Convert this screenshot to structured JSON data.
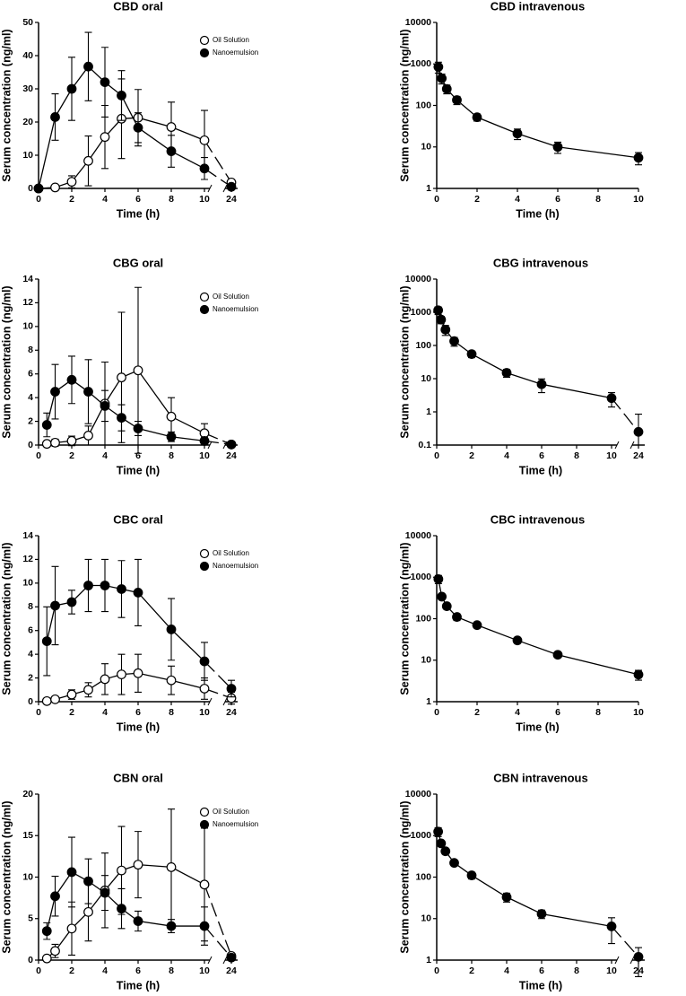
{
  "chart_data": [
    {
      "type": "line",
      "title": "CBD oral",
      "x_label": "Time (h)",
      "y_label": "Serum concentration (ng/ml)",
      "x": [
        0,
        1,
        2,
        3,
        4,
        5,
        6,
        8,
        10,
        24
      ],
      "xlim": [
        0,
        24
      ],
      "xticks": [
        0,
        2,
        4,
        6,
        8,
        10,
        24
      ],
      "x_axis_break": true,
      "ylim": [
        0,
        50
      ],
      "yticks": [
        0,
        10,
        20,
        30,
        40,
        50
      ],
      "yscale": "linear",
      "legend": "upper right",
      "series": [
        {
          "name": "Oil Solution",
          "color": "#000000",
          "marker_fill": "#ffffff",
          "values": [
            0,
            0.3,
            2,
            8.3,
            15.5,
            21,
            21.3,
            18.5,
            14.5,
            1.8
          ],
          "errors": [
            null,
            0.3,
            1.8,
            7.5,
            9.5,
            12,
            8.5,
            7.5,
            9,
            0.5
          ]
        },
        {
          "name": "Nanoemulsion",
          "color": "#000000",
          "marker_fill": "#000000",
          "values": [
            0,
            21.5,
            30,
            36.7,
            32,
            28,
            18.3,
            11.2,
            6,
            0.5
          ],
          "errors": [
            null,
            7,
            9.5,
            10.3,
            10.5,
            7.5,
            4.5,
            4.8,
            3.3,
            0.3
          ]
        }
      ]
    },
    {
      "type": "line",
      "title": "CBD intravenous",
      "x_label": "Time (h)",
      "y_label": "Serum concentration (ng/ml)",
      "x": [
        0.083,
        0.25,
        0.5,
        1,
        2,
        4,
        6,
        10
      ],
      "xlim": [
        0,
        10
      ],
      "xticks": [
        0,
        2,
        4,
        6,
        8,
        10
      ],
      "x_axis_break": false,
      "ylim": [
        1,
        10000
      ],
      "yticks": [
        1,
        10,
        100,
        1000,
        10000
      ],
      "yscale": "log",
      "series": [
        {
          "color": "#000000",
          "marker_fill": "#000000",
          "values": [
            850,
            450,
            250,
            135,
            52,
            21,
            10,
            5.5
          ],
          "errors": [
            250,
            120,
            60,
            30,
            10,
            6,
            3,
            1.8
          ]
        }
      ]
    },
    {
      "type": "line",
      "title": "CBG oral",
      "x_label": "Time (h)",
      "y_label": "Serum concentration (ng/ml)",
      "x": [
        0.5,
        1,
        2,
        3,
        4,
        5,
        6,
        8,
        10,
        24
      ],
      "xlim": [
        0,
        24
      ],
      "xticks": [
        0,
        2,
        4,
        6,
        8,
        10,
        24
      ],
      "x_axis_break": true,
      "ylim": [
        0,
        14
      ],
      "yticks": [
        0,
        2,
        4,
        6,
        8,
        10,
        12,
        14
      ],
      "yscale": "linear",
      "legend": "upper right",
      "series": [
        {
          "name": "Oil Solution",
          "color": "#000000",
          "marker_fill": "#ffffff",
          "values": [
            0.1,
            0.2,
            0.35,
            0.8,
            3.5,
            5.7,
            6.3,
            2.4,
            1,
            0.05
          ],
          "errors": [
            0.1,
            0.3,
            0.4,
            0.8,
            3.5,
            5.5,
            7,
            1.6,
            0.8,
            0.1
          ]
        },
        {
          "name": "Nanoemulsion",
          "color": "#000000",
          "marker_fill": "#000000",
          "values": [
            1.7,
            4.5,
            5.5,
            4.5,
            3.3,
            2.3,
            1.4,
            0.7,
            0.35,
            0.05
          ],
          "errors": [
            1,
            2.3,
            2,
            2.7,
            1.3,
            1.1,
            0.6,
            0.4,
            0.3,
            0.1
          ]
        }
      ]
    },
    {
      "type": "line",
      "title": "CBG intravenous",
      "x_label": "Time (h)",
      "y_label": "Serum concentration (ng/ml)",
      "x": [
        0.083,
        0.25,
        0.5,
        1,
        2,
        4,
        6,
        10,
        24
      ],
      "xlim": [
        0,
        24
      ],
      "xticks": [
        0,
        2,
        4,
        6,
        8,
        10,
        24
      ],
      "x_axis_break": true,
      "ylim": [
        0.1,
        10000
      ],
      "yticks": [
        0.1,
        1,
        10,
        100,
        1000,
        10000
      ],
      "yscale": "log",
      "series": [
        {
          "color": "#000000",
          "marker_fill": "#000000",
          "values": [
            1150,
            600,
            300,
            135,
            55,
            15,
            6.8,
            2.6,
            0.25
          ],
          "errors": [
            300,
            150,
            100,
            40,
            12,
            4,
            3,
            1.2,
            0.6
          ]
        }
      ]
    },
    {
      "type": "line",
      "title": "CBC oral",
      "x_label": "Time (h)",
      "y_label": "Serum concentration (ng/ml)",
      "x": [
        0.5,
        1,
        2,
        3,
        4,
        5,
        6,
        8,
        10,
        24
      ],
      "xlim": [
        0,
        24
      ],
      "xticks": [
        0,
        2,
        4,
        6,
        8,
        10,
        24
      ],
      "x_axis_break": true,
      "ylim": [
        0,
        14
      ],
      "yticks": [
        0,
        2,
        4,
        6,
        8,
        10,
        12,
        14
      ],
      "yscale": "linear",
      "legend": "upper right",
      "series": [
        {
          "name": "Oil Solution",
          "color": "#000000",
          "marker_fill": "#ffffff",
          "values": [
            0.05,
            0.2,
            0.6,
            1,
            1.9,
            2.3,
            2.4,
            1.8,
            1.1,
            0.3
          ],
          "errors": [
            0.05,
            0.1,
            0.4,
            0.6,
            1.3,
            1.7,
            1.6,
            1.2,
            0.9,
            0.5
          ]
        },
        {
          "name": "Nanoemulsion",
          "color": "#000000",
          "marker_fill": "#000000",
          "values": [
            5.1,
            8.1,
            8.4,
            9.8,
            9.8,
            9.5,
            9.2,
            6.1,
            3.4,
            1.1
          ],
          "errors": [
            2.9,
            3.3,
            1,
            2.2,
            2.2,
            2.4,
            2.8,
            2.6,
            1.6,
            0.7
          ]
        }
      ]
    },
    {
      "type": "line",
      "title": "CBC intravenous",
      "x_label": "Time (h)",
      "y_label": "Serum concentration (ng/ml)",
      "x": [
        0.083,
        0.25,
        0.5,
        1,
        2,
        4,
        6,
        10
      ],
      "xlim": [
        0,
        10
      ],
      "xticks": [
        0,
        2,
        4,
        6,
        8,
        10
      ],
      "x_axis_break": false,
      "ylim": [
        1,
        10000
      ],
      "yticks": [
        1,
        10,
        100,
        1000,
        10000
      ],
      "yscale": "log",
      "series": [
        {
          "color": "#000000",
          "marker_fill": "#000000",
          "values": [
            900,
            340,
            200,
            110,
            70,
            30,
            13.5,
            4.5
          ],
          "errors": [
            200,
            50,
            30,
            20,
            10,
            4,
            1.5,
            1.2
          ]
        }
      ]
    },
    {
      "type": "line",
      "title": "CBN oral",
      "x_label": "Time (h)",
      "y_label": "Serum concentration (ng/ml)",
      "x": [
        0.5,
        1,
        2,
        3,
        4,
        5,
        6,
        8,
        10,
        24
      ],
      "xlim": [
        0,
        24
      ],
      "xticks": [
        0,
        2,
        4,
        6,
        8,
        10,
        24
      ],
      "x_axis_break": true,
      "ylim": [
        0,
        20
      ],
      "yticks": [
        0,
        5,
        10,
        15,
        20
      ],
      "yscale": "linear",
      "legend": "upper right",
      "series": [
        {
          "name": "Oil Solution",
          "color": "#000000",
          "marker_fill": "#ffffff",
          "values": [
            0.2,
            1.1,
            3.8,
            5.8,
            8.4,
            10.8,
            11.5,
            11.2,
            9.1,
            0.5
          ],
          "errors": [
            0.2,
            0.8,
            3.2,
            3.5,
            4.5,
            5.3,
            4,
            7,
            6.8,
            0.3
          ]
        },
        {
          "name": "Nanoemulsion",
          "color": "#000000",
          "marker_fill": "#000000",
          "values": [
            3.5,
            7.7,
            10.6,
            9.5,
            8.1,
            6.2,
            4.7,
            4.1,
            4.1,
            0.3
          ],
          "errors": [
            1,
            2.4,
            4.2,
            2.7,
            2.1,
            2.4,
            1.2,
            0.8,
            2.3,
            0.3
          ]
        }
      ]
    },
    {
      "type": "line",
      "title": "CBN intravenous",
      "x_label": "Time (h)",
      "y_label": "Serum concentration (ng/ml)",
      "x": [
        0.083,
        0.25,
        0.5,
        1,
        2,
        4,
        6,
        10,
        24
      ],
      "xlim": [
        0,
        24
      ],
      "xticks": [
        0,
        2,
        4,
        6,
        8,
        10,
        24
      ],
      "x_axis_break": true,
      "ylim": [
        1,
        10000
      ],
      "yticks": [
        1,
        10,
        100,
        1000,
        10000
      ],
      "yscale": "log",
      "series": [
        {
          "color": "#000000",
          "marker_fill": "#000000",
          "values": [
            1250,
            650,
            420,
            220,
            110,
            33,
            13,
            6.5,
            1.2
          ],
          "errors": [
            300,
            100,
            60,
            30,
            20,
            8,
            3,
            4,
            0.8
          ]
        }
      ]
    }
  ]
}
